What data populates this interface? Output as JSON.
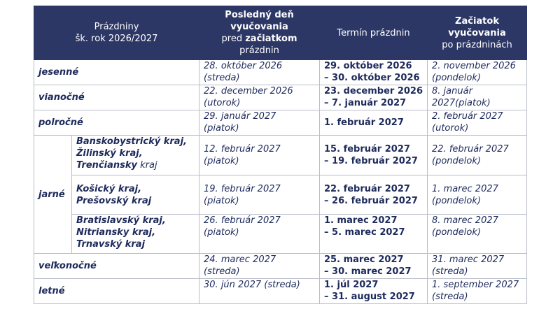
{
  "header": {
    "col1_line1": "Prázdniny",
    "col1_line2": "šk. rok 2026/2027",
    "col2_line1": "Posledný deň",
    "col2_line2": "vyučovania",
    "col2_line3a": "pred ",
    "col2_line3b": "začiatkom",
    "col2_line4": "prázdnin",
    "col3": "Termín prázdnin",
    "col4_line1": "Začiatok",
    "col4_line2": "vyučovania",
    "col4_line3": "po prázdninách"
  },
  "rows": {
    "jesenne": {
      "name": "jesenné",
      "last_day": "28. október 2026",
      "last_dow": "(streda)",
      "term1": "29. október 2026",
      "term2": "– 30. október 2026",
      "start1": "2. november 2026",
      "start2": "(pondelok)"
    },
    "vianocne": {
      "name": "vianočné",
      "last_day": "22. december 2026",
      "last_dow": "(utorok)",
      "term1": "23. december 2026",
      "term2": "– 7. január 2027",
      "start1": "8. január",
      "start2": "2027(piatok)"
    },
    "polrocne": {
      "name": "polročné",
      "last_day": "29. január 2027",
      "last_dow": "(piatok)",
      "term1": "1. február 2027",
      "start1": "2. február 2027",
      "start2": "(utorok)"
    },
    "jarne": {
      "name": "jarné",
      "r1": {
        "region1": "Banskobystrický kraj,",
        "region2": "Žilinský kraj,",
        "region3a": "Trenčiansky",
        "region3b": " kraj",
        "last_day": "12. február 2027",
        "last_dow": "(piatok)",
        "term1": "15. február 2027",
        "term2": "– 19. február 2027",
        "start1": "22. február 2027",
        "start2": "(pondelok)"
      },
      "r2": {
        "region1": "Košický kraj,",
        "region2": "Prešovský kraj",
        "last_day": "19. február 2027",
        "last_dow": "(piatok)",
        "term1": "22. február 2027",
        "term2": "– 26. február 2027",
        "start1": "1. marec 2027",
        "start2": "(pondelok)"
      },
      "r3": {
        "region1": "Bratislavský kraj,",
        "region2": "Nitriansky kraj,",
        "region3": "Trnavský kraj",
        "last_day": "26. február 2027",
        "last_dow": "(piatok)",
        "term1": "1. marec 2027",
        "term2": "– 5. marec 2027",
        "start1": "8. marec 2027",
        "start2": "(pondelok)"
      }
    },
    "velkonocne": {
      "name": "veľkonočné",
      "last_day": "24. marec 2027",
      "last_dow": "(streda)",
      "term1": "25. marec 2027",
      "term2": "– 30. marec 2027",
      "start1": "31. marec 2027",
      "start2": "(streda)"
    },
    "letne": {
      "name": "letné",
      "last_day": "30. jún 2027 (streda)",
      "term1": "1. júl 2027",
      "term2": "– 31. august 2027",
      "start1": "1. september 2027",
      "start2": "(streda)"
    }
  }
}
